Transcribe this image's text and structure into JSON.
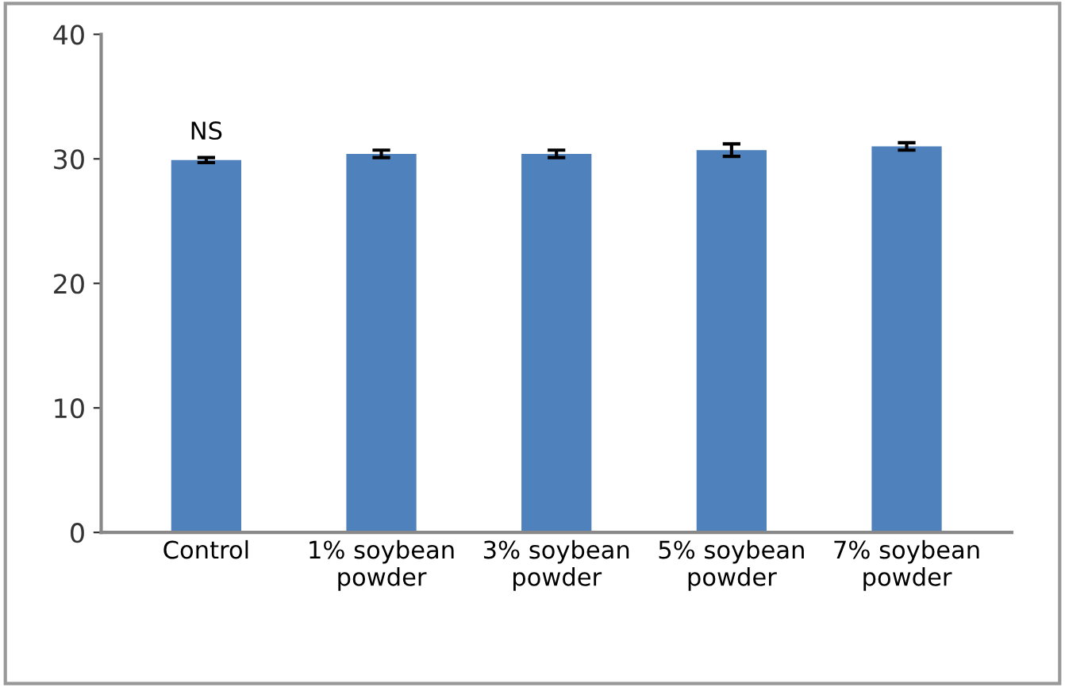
{
  "chart_data": {
    "type": "bar",
    "categories": [
      "Control",
      "1% soybean\npowder",
      "3% soybean\npowder",
      "5% soybean\npowder",
      "7% soybean\npowder"
    ],
    "values": [
      29.9,
      30.4,
      30.4,
      30.7,
      31.0
    ],
    "errors": [
      0.2,
      0.3,
      0.3,
      0.5,
      0.3
    ],
    "color": "#4f81bd",
    "ylim": [
      0,
      40
    ],
    "yticks": [
      0,
      10,
      20,
      30,
      40
    ],
    "grid": false,
    "annotations": [
      {
        "text": "NS",
        "x": "Control",
        "y": 29.9
      }
    ]
  }
}
